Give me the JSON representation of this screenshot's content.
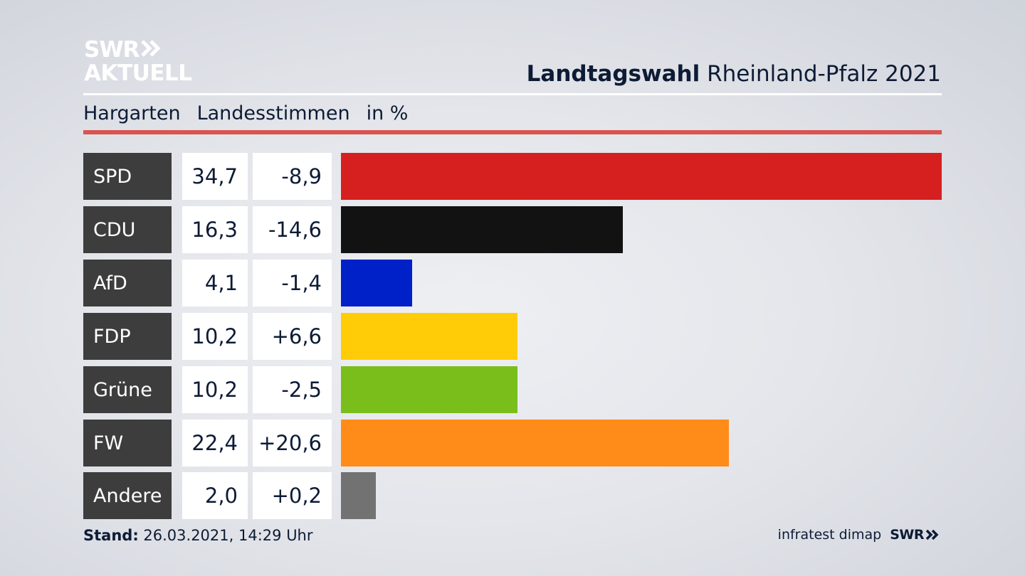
{
  "logo": {
    "line1": "SWR",
    "line2": "AKTUELL"
  },
  "header": {
    "title_bold": "Landtagswahl",
    "title_rest": "Rheinland-Pfalz 2021",
    "location": "Hargarten",
    "vote_type": "Landesstimmen",
    "unit": "in %"
  },
  "footer": {
    "stand_label": "Stand:",
    "stand_value": "26.03.2021, 14:29 Uhr",
    "source": "infratest dimap",
    "source_brand": "SWR"
  },
  "colors": {
    "SPD": "#d62020",
    "CDU": "#121212",
    "AfD": "#0021c8",
    "FDP": "#ffcc07",
    "Grüne": "#79be1b",
    "FW": "#ff8c19",
    "Andere": "#727272",
    "accent_red": "#d9534f"
  },
  "chart_data": {
    "type": "bar",
    "orientation": "horizontal",
    "title": "Landtagswahl Rheinland-Pfalz 2021",
    "subtitle": "Hargarten Landesstimmen in %",
    "categories": [
      "SPD",
      "CDU",
      "AfD",
      "FDP",
      "Grüne",
      "FW",
      "Andere"
    ],
    "values": [
      34.7,
      16.3,
      4.1,
      10.2,
      10.2,
      22.4,
      2.0
    ],
    "value_labels": [
      "34,7",
      "16,3",
      "4,1",
      "10,2",
      "10,2",
      "22,4",
      "2,0"
    ],
    "diff_labels": [
      "-8,9",
      "-14,6",
      "-1,4",
      "+6,6",
      "-2,5",
      "+20,6",
      "+0,2"
    ],
    "diffs": [
      -8.9,
      -14.6,
      -1.4,
      6.6,
      -2.5,
      20.6,
      0.2
    ],
    "xlim": [
      0,
      34.7
    ],
    "grid": false,
    "legend": "none"
  }
}
